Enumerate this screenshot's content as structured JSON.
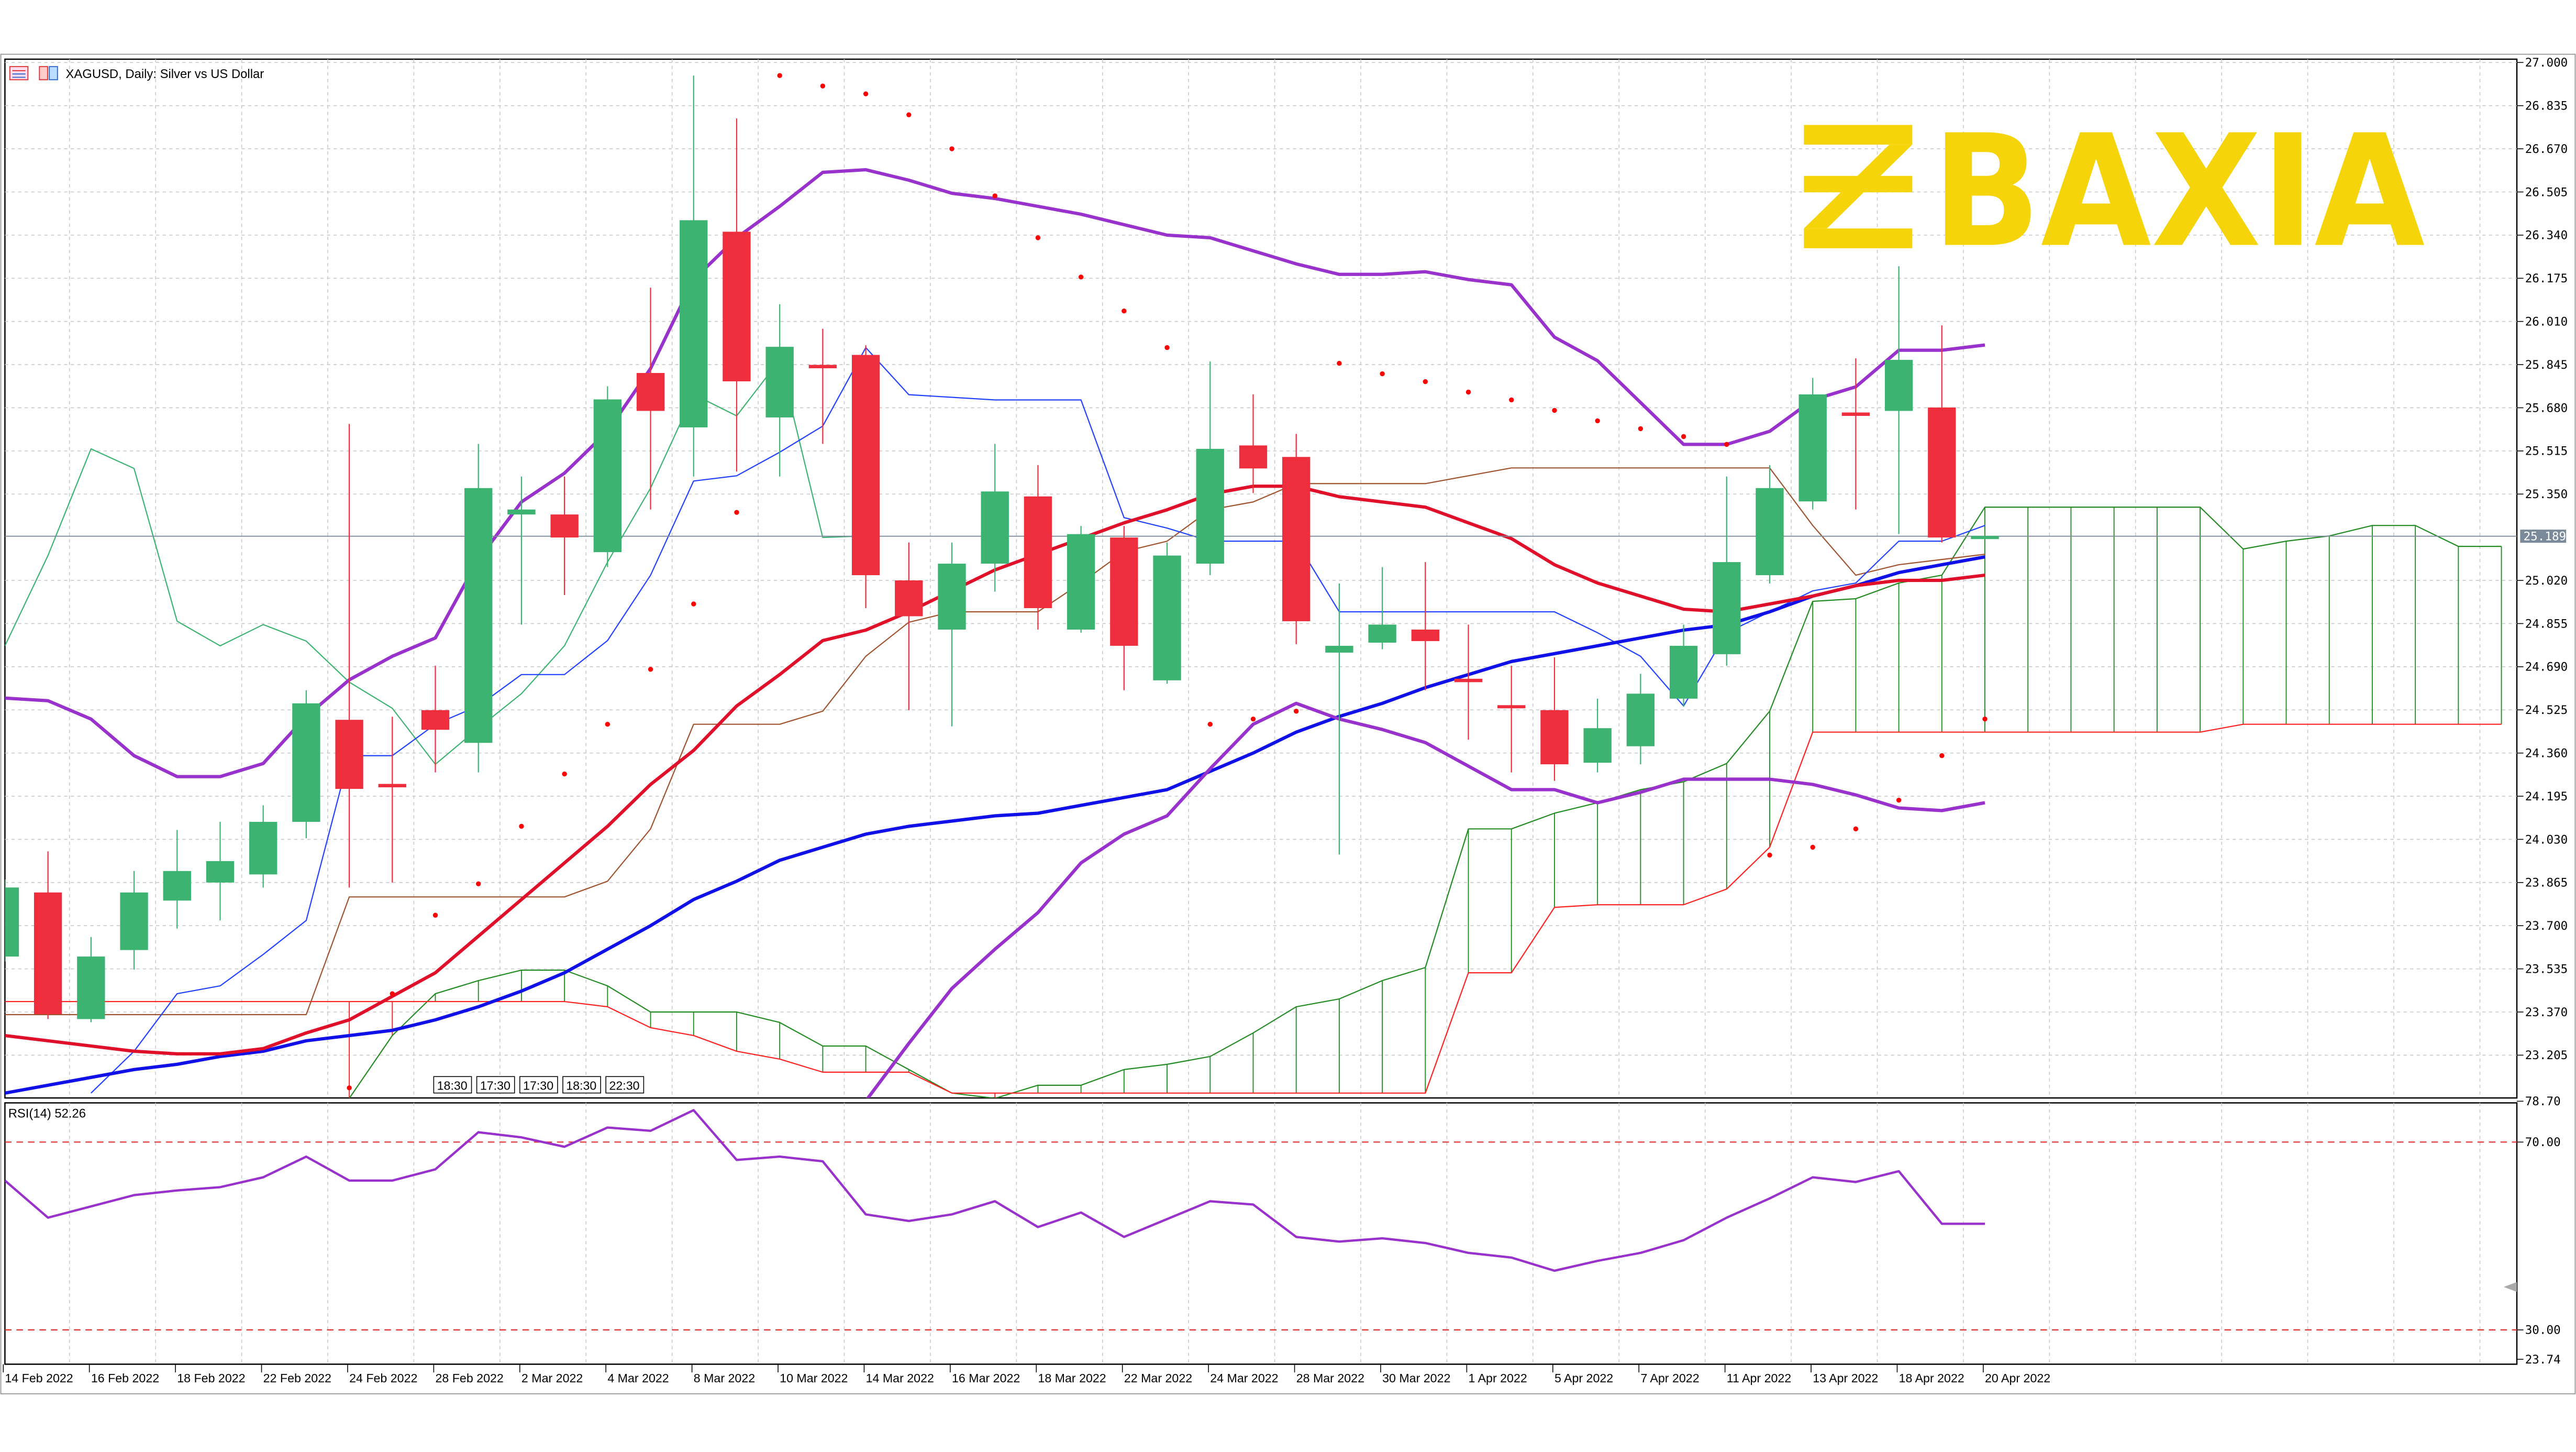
{
  "header": {
    "title": "XAGUSD, Daily:  Silver vs US Dollar",
    "icons": [
      "indicator-list-icon",
      "template-icon"
    ]
  },
  "logo": {
    "text": "BAXIA",
    "color": "#f5d50a"
  },
  "price_axis": {
    "ticks": [
      "27.000",
      "26.835",
      "26.670",
      "26.505",
      "26.340",
      "26.175",
      "26.010",
      "25.845",
      "25.680",
      "25.515",
      "25.350",
      "25.020",
      "24.855",
      "24.690",
      "24.525",
      "24.360",
      "24.195",
      "24.030",
      "23.865",
      "23.700",
      "23.535",
      "23.370",
      "23.205"
    ],
    "current_price": "25.189",
    "range": [
      23.1,
      27.0
    ]
  },
  "rsi": {
    "label": "RSI(14) 52.26",
    "ticks": [
      "78.70",
      "70.00",
      "30.00",
      "23.74"
    ],
    "range": [
      23.74,
      78.7
    ],
    "levels": [
      70,
      30
    ],
    "values": [
      61.8,
      53.9,
      56.3,
      58.7,
      59.7,
      60.4,
      62.5,
      66.9,
      61.8,
      61.8,
      64.2,
      72.1,
      71.0,
      69.0,
      73.1,
      72.4,
      76.8,
      66.2,
      66.9,
      65.9,
      54.6,
      53.2,
      54.6,
      57.4,
      51.9,
      55.0,
      49.8,
      53.6,
      57.4,
      56.7,
      49.8,
      48.8,
      49.5,
      48.5,
      46.4,
      45.4,
      42.6,
      44.7,
      46.4,
      49.1,
      53.9,
      58.0,
      62.5,
      61.5,
      63.8,
      52.6,
      52.6
    ]
  },
  "time_axis": {
    "labels": [
      "14 Feb 2022",
      "16 Feb 2022",
      "18 Feb 2022",
      "22 Feb 2022",
      "24 Feb 2022",
      "28 Feb 2022",
      "2 Mar 2022",
      "4 Mar 2022",
      "8 Mar 2022",
      "10 Mar 2022",
      "14 Mar 2022",
      "16 Mar 2022",
      "18 Mar 2022",
      "22 Mar 2022",
      "24 Mar 2022",
      "28 Mar 2022",
      "30 Mar 2022",
      "1 Apr 2022",
      "5 Apr 2022",
      "7 Apr 2022",
      "11 Apr 2022",
      "13 Apr 2022",
      "18 Apr 2022",
      "20 Apr 2022"
    ]
  },
  "session_tags": [
    "18:30",
    "17:30",
    "17:30",
    "18:30",
    "22:30"
  ],
  "colors": {
    "bull": "#3cb371",
    "bear": "#ee2e3c",
    "bollinger": "#9932cc",
    "ma_fast": "#e0102a",
    "ma_slow": "#1010e8",
    "tenkan": "#2040ff",
    "kijun": "#a0522d",
    "chikou": "#3cb371",
    "span_a": "#228b22",
    "span_b": "#ff2020",
    "sar": "#ff0000",
    "rsi": "#9932cc",
    "level": "#e03030",
    "price_line": "#7b8a9a"
  },
  "chart_data": {
    "type": "candlestick",
    "ohlc": [
      [
        23.582,
        23.877,
        23.563,
        23.846
      ],
      [
        23.827,
        23.984,
        23.343,
        23.362
      ],
      [
        23.343,
        23.657,
        23.331,
        23.582
      ],
      [
        23.607,
        23.909,
        23.532,
        23.827
      ],
      [
        23.796,
        24.066,
        23.689,
        23.909
      ],
      [
        23.865,
        24.097,
        23.72,
        23.947
      ],
      [
        23.896,
        24.16,
        23.846,
        24.097
      ],
      [
        24.097,
        24.6,
        24.034,
        24.55
      ],
      [
        24.487,
        25.618,
        23.846,
        24.223
      ],
      [
        24.242,
        24.499,
        23.865,
        24.229
      ],
      [
        24.524,
        24.694,
        24.286,
        24.449
      ],
      [
        24.399,
        25.542,
        24.286,
        25.373
      ],
      [
        25.272,
        25.417,
        24.851,
        25.291
      ],
      [
        25.272,
        25.417,
        24.964,
        25.184
      ],
      [
        25.128,
        25.762,
        25.071,
        25.712
      ],
      [
        25.813,
        26.139,
        25.291,
        25.668
      ],
      [
        25.605,
        26.95,
        25.417,
        26.397
      ],
      [
        26.353,
        26.786,
        25.436,
        25.781
      ],
      [
        25.643,
        26.076,
        25.417,
        25.913
      ],
      [
        25.844,
        25.982,
        25.542,
        25.831
      ],
      [
        25.882,
        25.919,
        24.914,
        25.04
      ],
      [
        25.02,
        25.165,
        24.524,
        24.883
      ],
      [
        24.832,
        25.165,
        24.462,
        25.084
      ],
      [
        25.084,
        25.542,
        24.977,
        25.36
      ],
      [
        25.341,
        25.461,
        24.832,
        24.914
      ],
      [
        24.832,
        25.228,
        24.82,
        25.197
      ],
      [
        25.184,
        25.228,
        24.6,
        24.77
      ],
      [
        24.638,
        25.165,
        24.625,
        25.115
      ],
      [
        25.084,
        25.857,
        25.04,
        25.523
      ],
      [
        25.536,
        25.731,
        25.354,
        25.448
      ],
      [
        25.492,
        25.58,
        24.776,
        24.864
      ],
      [
        24.744,
        25.008,
        23.972,
        24.77
      ],
      [
        24.782,
        25.071,
        24.757,
        24.851
      ],
      [
        24.832,
        25.09,
        24.6,
        24.788
      ],
      [
        24.644,
        24.851,
        24.411,
        24.631
      ],
      [
        24.543,
        24.694,
        24.286,
        24.531
      ],
      [
        24.524,
        24.726,
        24.254,
        24.317
      ],
      [
        24.323,
        24.568,
        24.286,
        24.455
      ],
      [
        24.386,
        24.663,
        24.317,
        24.587
      ],
      [
        24.568,
        24.851,
        24.537,
        24.77
      ],
      [
        24.738,
        25.417,
        24.694,
        25.09
      ],
      [
        25.04,
        25.461,
        25.008,
        25.373
      ],
      [
        25.322,
        25.794,
        25.291,
        25.731
      ],
      [
        25.662,
        25.869,
        25.291,
        25.649
      ],
      [
        25.668,
        26.221,
        25.197,
        25.863
      ],
      [
        25.681,
        25.995,
        25.165,
        25.184
      ],
      [
        25.178,
        25.19,
        25.178,
        25.19
      ]
    ],
    "bollinger_upper": [
      24.57,
      24.56,
      24.49,
      24.35,
      24.27,
      24.27,
      24.32,
      24.5,
      24.64,
      24.73,
      24.8,
      25.1,
      25.32,
      25.43,
      25.59,
      25.83,
      26.17,
      26.33,
      26.45,
      26.58,
      26.59,
      26.55,
      26.5,
      26.48,
      26.45,
      26.42,
      26.38,
      26.34,
      26.33,
      26.28,
      26.23,
      26.19,
      26.19,
      26.2,
      26.17,
      26.15,
      25.95,
      25.86,
      25.7,
      25.54,
      25.54,
      25.59,
      25.71,
      25.76,
      25.9,
      25.9,
      25.92
    ],
    "bollinger_lower": [
      null,
      null,
      null,
      null,
      null,
      null,
      null,
      null,
      null,
      null,
      null,
      null,
      null,
      null,
      null,
      null,
      null,
      null,
      null,
      null,
      23.03,
      23.25,
      23.46,
      23.61,
      23.75,
      23.94,
      24.05,
      24.12,
      24.3,
      24.47,
      24.55,
      24.49,
      24.45,
      24.4,
      24.31,
      24.22,
      24.22,
      24.17,
      24.21,
      24.26,
      24.26,
      24.26,
      24.24,
      24.2,
      24.15,
      24.14,
      24.17
    ],
    "ma_fast": [
      23.28,
      23.26,
      23.24,
      23.22,
      23.21,
      23.21,
      23.23,
      23.29,
      23.34,
      23.43,
      23.52,
      23.66,
      23.8,
      23.94,
      24.08,
      24.24,
      24.37,
      24.54,
      24.66,
      24.79,
      24.83,
      24.9,
      24.98,
      25.06,
      25.12,
      25.18,
      25.24,
      25.29,
      25.35,
      25.38,
      25.38,
      25.34,
      25.32,
      25.3,
      25.24,
      25.18,
      25.08,
      25.01,
      24.96,
      24.91,
      24.9,
      24.93,
      24.96,
      25.0,
      25.02,
      25.02,
      25.04
    ],
    "ma_slow": [
      23.06,
      23.09,
      23.12,
      23.15,
      23.17,
      23.2,
      23.22,
      23.26,
      23.28,
      23.3,
      23.34,
      23.39,
      23.45,
      23.52,
      23.61,
      23.7,
      23.8,
      23.87,
      23.95,
      24.0,
      24.05,
      24.08,
      24.1,
      24.12,
      24.13,
      24.16,
      24.19,
      24.22,
      24.29,
      24.36,
      24.44,
      24.5,
      24.55,
      24.61,
      24.66,
      24.71,
      24.74,
      24.77,
      24.8,
      24.83,
      24.85,
      24.9,
      24.96,
      25.0,
      25.05,
      25.08,
      25.11
    ],
    "tenkan": [
      null,
      null,
      23.06,
      23.22,
      23.44,
      23.47,
      23.59,
      23.72,
      24.35,
      24.35,
      24.47,
      24.54,
      24.66,
      24.66,
      24.79,
      25.04,
      25.4,
      25.42,
      25.51,
      25.61,
      25.91,
      25.73,
      25.72,
      25.71,
      25.71,
      25.71,
      25.26,
      25.22,
      25.17,
      25.17,
      25.17,
      24.9,
      24.9,
      24.9,
      24.9,
      24.9,
      24.9,
      24.82,
      24.73,
      24.54,
      24.82,
      24.9,
      24.98,
      25.01,
      25.17,
      25.17,
      25.23
    ],
    "kijun": [
      23.36,
      23.36,
      23.36,
      23.36,
      23.36,
      23.36,
      23.36,
      23.36,
      23.81,
      23.81,
      23.81,
      23.81,
      23.81,
      23.81,
      23.87,
      24.07,
      24.47,
      24.47,
      24.47,
      24.52,
      24.73,
      24.86,
      24.9,
      24.9,
      24.9,
      25.01,
      25.13,
      25.17,
      25.29,
      25.32,
      25.39,
      25.39,
      25.39,
      25.39,
      25.42,
      25.45,
      25.45,
      25.45,
      25.45,
      25.45,
      25.45,
      25.45,
      25.23,
      25.04,
      25.08,
      25.1,
      25.12
    ],
    "span_a": [
      null,
      null,
      null,
      null,
      null,
      null,
      null,
      null,
      23.04,
      23.28,
      23.44,
      23.49,
      23.53,
      23.53,
      23.47,
      23.37,
      23.37,
      23.37,
      23.33,
      23.24,
      23.24,
      23.15,
      23.06,
      23.04,
      23.09,
      23.09,
      23.15,
      23.17,
      23.2,
      23.29,
      23.39,
      23.42,
      23.49,
      23.54,
      24.07,
      24.07,
      24.13,
      24.17,
      24.22,
      24.25,
      24.32,
      24.52,
      24.94,
      24.95,
      25.01,
      25.04,
      25.3,
      25.3,
      25.3,
      25.3,
      25.3,
      25.3,
      25.14,
      25.17,
      25.19,
      25.23,
      25.23,
      25.15,
      25.15
    ],
    "span_b": [
      23.41,
      23.41,
      23.41,
      23.41,
      23.41,
      23.41,
      23.41,
      23.41,
      23.41,
      23.41,
      23.41,
      23.41,
      23.41,
      23.41,
      23.39,
      23.31,
      23.28,
      23.22,
      23.19,
      23.14,
      23.14,
      23.14,
      23.06,
      23.06,
      23.06,
      23.06,
      23.06,
      23.06,
      23.06,
      23.06,
      23.06,
      23.06,
      23.06,
      23.06,
      23.52,
      23.52,
      23.77,
      23.78,
      23.78,
      23.78,
      23.84,
      24.0,
      24.44,
      24.44,
      24.44,
      24.44,
      24.44,
      24.44,
      24.44,
      24.44,
      24.44,
      24.44,
      24.47,
      24.47,
      24.47,
      24.47,
      24.47,
      24.47,
      24.47
    ],
    "parabolic_sar": [
      null,
      null,
      null,
      null,
      null,
      null,
      null,
      null,
      23.08,
      23.44,
      23.74,
      23.86,
      24.08,
      24.28,
      24.47,
      24.68,
      24.93,
      25.28,
      26.95,
      26.91,
      26.88,
      26.8,
      26.67,
      26.49,
      26.33,
      26.18,
      26.05,
      25.91,
      24.47,
      24.49,
      24.52,
      25.85,
      25.81,
      25.78,
      25.74,
      25.71,
      25.67,
      25.63,
      25.6,
      25.57,
      25.54,
      23.97,
      24.0,
      24.07,
      24.18,
      24.35,
      24.49
    ]
  }
}
